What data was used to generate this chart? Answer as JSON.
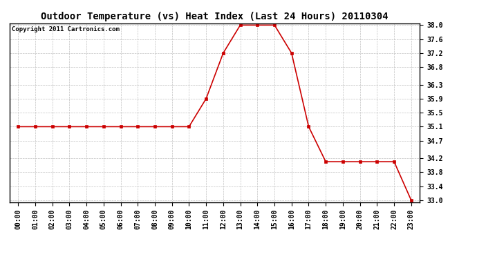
{
  "title": "Outdoor Temperature (vs) Heat Index (Last 24 Hours) 20110304",
  "copyright_text": "Copyright 2011 Cartronics.com",
  "x_labels": [
    "00:00",
    "01:00",
    "02:00",
    "03:00",
    "04:00",
    "05:00",
    "06:00",
    "07:00",
    "08:00",
    "09:00",
    "10:00",
    "11:00",
    "12:00",
    "13:00",
    "14:00",
    "15:00",
    "16:00",
    "17:00",
    "18:00",
    "19:00",
    "20:00",
    "21:00",
    "22:00",
    "23:00"
  ],
  "y_values": [
    35.1,
    35.1,
    35.1,
    35.1,
    35.1,
    35.1,
    35.1,
    35.1,
    35.1,
    35.1,
    35.1,
    35.9,
    37.2,
    38.0,
    38.0,
    38.0,
    37.2,
    35.1,
    34.1,
    34.1,
    34.1,
    34.1,
    34.1,
    33.0
  ],
  "line_color": "#cc0000",
  "marker": "s",
  "marker_size": 2.5,
  "ylim_min": 33.0,
  "ylim_max": 38.0,
  "yticks": [
    33.0,
    33.4,
    33.8,
    34.2,
    34.7,
    35.1,
    35.5,
    35.9,
    36.3,
    36.8,
    37.2,
    37.6,
    38.0
  ],
  "background_color": "#ffffff",
  "plot_bg_color": "#ffffff",
  "grid_color": "#bbbbbb",
  "title_fontsize": 10,
  "tick_fontsize": 7,
  "copyright_fontsize": 6.5,
  "linewidth": 1.2
}
